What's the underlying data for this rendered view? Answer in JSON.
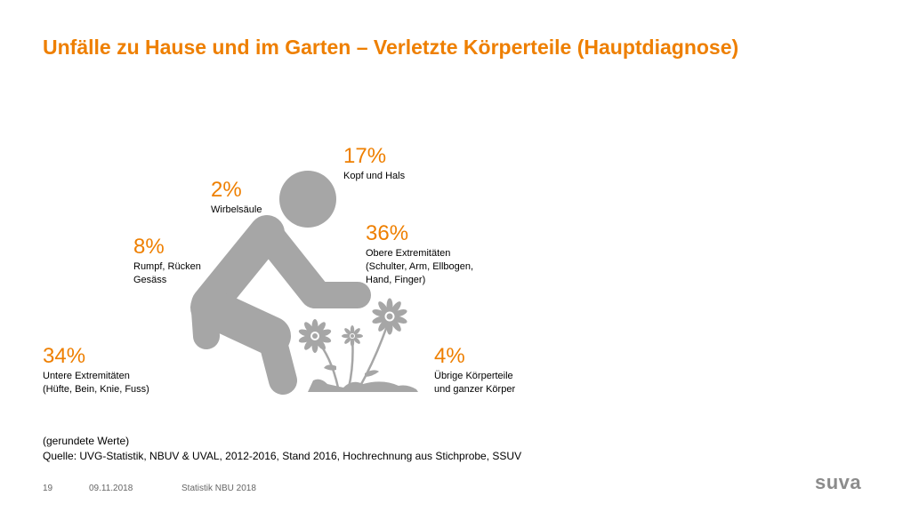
{
  "title": "Unfälle zu Hause und im Garten – Verletzte Körperteile (Hauptdiagnose)",
  "colors": {
    "accent": "#ee7f00",
    "figure": "#a6a6a6",
    "text": "#000000",
    "footer": "#666666",
    "logo": "#8c8c8c"
  },
  "stats": {
    "kopf": {
      "pct": "17%",
      "label": [
        "Kopf und Hals"
      ]
    },
    "wirbel": {
      "pct": "2%",
      "label": [
        "Wirbelsäule"
      ]
    },
    "obere": {
      "pct": "36%",
      "label": [
        "Obere Extremitäten",
        "(Schulter, Arm, Ellbogen,",
        "Hand, Finger)"
      ]
    },
    "rumpf": {
      "pct": "8%",
      "label": [
        "Rumpf, Rücken",
        "Gesäss"
      ]
    },
    "untere": {
      "pct": "34%",
      "label": [
        "Untere Extremitäten",
        "(Hüfte, Bein, Knie, Fuss)"
      ]
    },
    "uebrige": {
      "pct": "4%",
      "label": [
        "Übrige Körperteile",
        "und ganzer Körper"
      ]
    }
  },
  "notes": {
    "rounded": "(gerundete Werte)",
    "source": "Quelle: UVG-Statistik, NBUV & UVAL, 2012-2016, Stand 2016, Hochrechnung aus Stichprobe, SSUV"
  },
  "footer": {
    "page": "19",
    "date": "09.11.2018",
    "label": "Statistik NBU 2018"
  },
  "logo": "suva"
}
